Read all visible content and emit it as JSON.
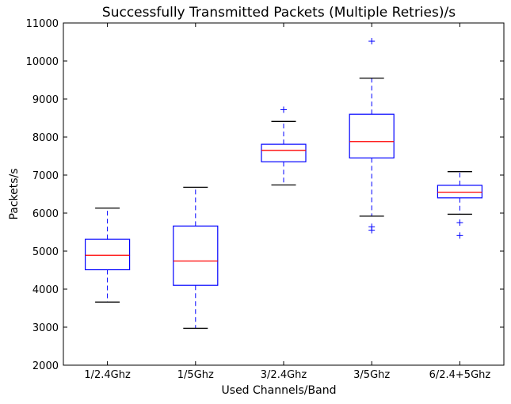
{
  "chart_data": {
    "type": "box",
    "title": "Successfully Transmitted Packets (Multiple Retries)/s",
    "xlabel": "Used Channels/Band",
    "ylabel": "Packets/s",
    "ylim": [
      2000,
      11000
    ],
    "yticks": [
      "2000",
      "3000",
      "4000",
      "5000",
      "6000",
      "7000",
      "8000",
      "9000",
      "10000",
      "11000"
    ],
    "grid": false,
    "categories": [
      "1/2.4Ghz",
      "1/5Ghz",
      "3/2.4Ghz",
      "3/5Ghz",
      "6/2.4+5Ghz"
    ],
    "boxes": [
      {
        "whisker_low": 3660,
        "q1": 4510,
        "median": 4890,
        "q3": 5310,
        "whisker_high": 6130,
        "outliers": []
      },
      {
        "whisker_low": 2970,
        "q1": 4100,
        "median": 4740,
        "q3": 5660,
        "whisker_high": 6680,
        "outliers": []
      },
      {
        "whisker_low": 6740,
        "q1": 7350,
        "median": 7650,
        "q3": 7810,
        "whisker_high": 8410,
        "outliers": [
          8720
        ]
      },
      {
        "whisker_low": 5920,
        "q1": 7450,
        "median": 7880,
        "q3": 8600,
        "whisker_high": 9550,
        "outliers": [
          10520,
          5640,
          5550
        ]
      },
      {
        "whisker_low": 5970,
        "q1": 6400,
        "median": 6550,
        "q3": 6730,
        "whisker_high": 7090,
        "outliers": [
          5750,
          5410
        ]
      }
    ],
    "colors": {
      "box": "#0000ff",
      "median": "#ff0000",
      "caps": "#000000",
      "outlier": "#0000ff",
      "axes": "#000000"
    }
  }
}
